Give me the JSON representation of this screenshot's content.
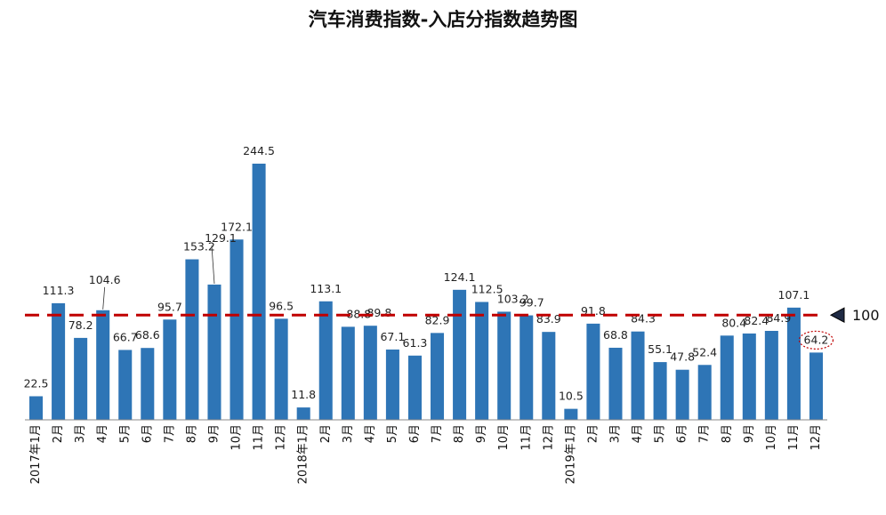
{
  "chart_data": {
    "type": "bar",
    "title": "汽车消费指数-入店分指数趋势图",
    "xlabel": "",
    "ylabel": "",
    "ylim": [
      0,
      250
    ],
    "grid": false,
    "legend": "none",
    "categories": [
      "2017年1月",
      "2月",
      "3月",
      "4月",
      "5月",
      "6月",
      "7月",
      "8月",
      "9月",
      "10月",
      "11月",
      "12月",
      "2018年1月",
      "2月",
      "3月",
      "4月",
      "5月",
      "6月",
      "7月",
      "8月",
      "9月",
      "10月",
      "11月",
      "12月",
      "2019年1月",
      "2月",
      "3月",
      "4月",
      "5月",
      "6月",
      "7月",
      "8月",
      "9月",
      "10月",
      "11月",
      "12月"
    ],
    "values": [
      22.5,
      111.3,
      78.2,
      104.6,
      66.7,
      68.6,
      95.7,
      153.2,
      129.1,
      172.1,
      244.5,
      96.5,
      11.8,
      113.1,
      88.8,
      89.8,
      67.1,
      61.3,
      82.9,
      124.1,
      112.5,
      103.2,
      99.7,
      83.9,
      10.5,
      91.8,
      68.8,
      84.3,
      55.1,
      47.8,
      52.4,
      80.4,
      82.4,
      84.9,
      107.1,
      64.2
    ],
    "data_labels": [
      "22.5",
      "111.3",
      "78.2",
      "104.6",
      "66.7",
      "68.6",
      "95.7",
      "153.2",
      "129.1",
      "172.1",
      "244.5",
      "96.5",
      "11.8",
      "113.1",
      "88.8",
      "89.8",
      "67.1",
      "61.3",
      "82.9",
      "124.1",
      "112.5",
      "103.2",
      "99.7",
      "83.9",
      "10.5",
      "91.8",
      "68.8",
      "84.3",
      "55.1",
      "47.8",
      "52.4",
      "80.4",
      "82.4",
      "84.9",
      "107.1",
      "64.2"
    ],
    "reference_line": {
      "value": 100,
      "label": "100",
      "color": "#c00000",
      "style": "dashed"
    },
    "highlight": {
      "index": 35,
      "style": "dotted-ellipse",
      "color": "#c00000"
    },
    "bar_color": "#2e75b6"
  }
}
